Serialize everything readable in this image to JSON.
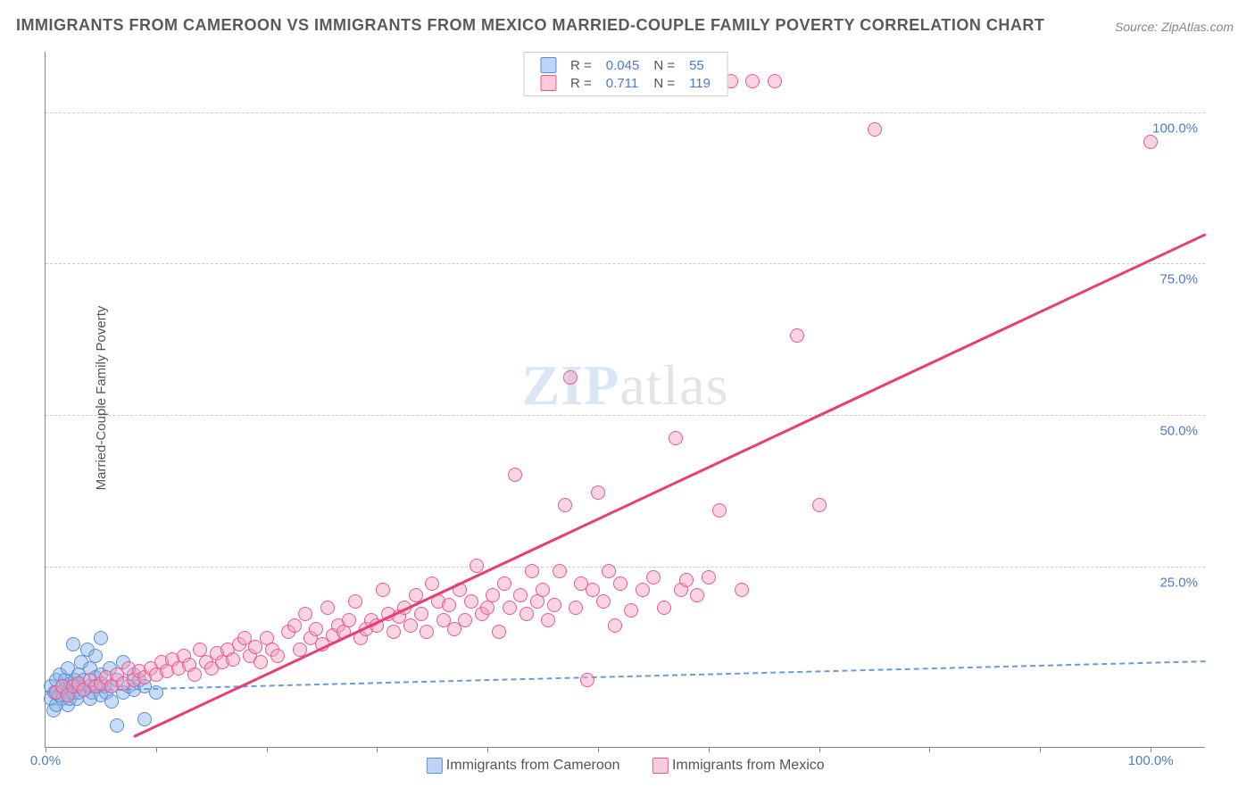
{
  "title": "IMMIGRANTS FROM CAMEROON VS IMMIGRANTS FROM MEXICO MARRIED-COUPLE FAMILY POVERTY CORRELATION CHART",
  "source": "Source: ZipAtlas.com",
  "ylabel": "Married-Couple Family Poverty",
  "watermark_a": "ZIP",
  "watermark_b": "atlas",
  "chart": {
    "type": "scatter",
    "xlim": [
      0,
      105
    ],
    "ylim": [
      -5,
      110
    ],
    "x_ticks": [
      0,
      10,
      20,
      30,
      40,
      50,
      60,
      70,
      80,
      90,
      100
    ],
    "x_tick_labels": {
      "0": "0.0%",
      "100": "100.0%"
    },
    "y_ticks": [
      25,
      50,
      75,
      100
    ],
    "y_tick_labels": {
      "25": "25.0%",
      "50": "50.0%",
      "75": "75.0%",
      "100": "100.0%"
    },
    "grid_color": "#cccccc",
    "background_color": "#ffffff",
    "axis_color": "#888888",
    "series": [
      {
        "name": "Immigrants from Cameroon",
        "key": "cameroon",
        "color_fill": "rgba(135,178,232,0.45)",
        "color_stroke": "#5a8fd6",
        "R": "0.045",
        "N": "55",
        "trend": {
          "x1": 0,
          "y1": 4.5,
          "x2": 105,
          "y2": 9.5
        },
        "points": [
          [
            0.5,
            3
          ],
          [
            0.5,
            5
          ],
          [
            0.7,
            1
          ],
          [
            0.8,
            4
          ],
          [
            1,
            6
          ],
          [
            1,
            2
          ],
          [
            1,
            4
          ],
          [
            1.2,
            3.5
          ],
          [
            1.3,
            7
          ],
          [
            1.5,
            5
          ],
          [
            1.5,
            3
          ],
          [
            1.7,
            4.5
          ],
          [
            1.8,
            6
          ],
          [
            2,
            4
          ],
          [
            2,
            8
          ],
          [
            2,
            2
          ],
          [
            2.2,
            3
          ],
          [
            2.3,
            5.5
          ],
          [
            2.5,
            4
          ],
          [
            2.5,
            12
          ],
          [
            2.7,
            6
          ],
          [
            2.8,
            3
          ],
          [
            3,
            5
          ],
          [
            3,
            7
          ],
          [
            3,
            4
          ],
          [
            3.2,
            9
          ],
          [
            3.5,
            4.5
          ],
          [
            3.5,
            6
          ],
          [
            3.8,
            11
          ],
          [
            4,
            5
          ],
          [
            4,
            3
          ],
          [
            4,
            8
          ],
          [
            4.2,
            4
          ],
          [
            4.5,
            6.5
          ],
          [
            4.5,
            10
          ],
          [
            4.7,
            5
          ],
          [
            5,
            3.5
          ],
          [
            5,
            13
          ],
          [
            5,
            7
          ],
          [
            5.3,
            5
          ],
          [
            5.5,
            4
          ],
          [
            5.8,
            8
          ],
          [
            6,
            5
          ],
          [
            6,
            2.5
          ],
          [
            6.5,
            -1.5
          ],
          [
            6.5,
            6
          ],
          [
            7,
            4
          ],
          [
            7,
            9
          ],
          [
            7.5,
            5
          ],
          [
            8,
            4.5
          ],
          [
            8,
            7
          ],
          [
            8.5,
            6
          ],
          [
            9,
            -0.5
          ],
          [
            9,
            5
          ],
          [
            10,
            4
          ]
        ]
      },
      {
        "name": "Immigrants from Mexico",
        "key": "mexico",
        "color_fill": "rgba(244,160,190,0.45)",
        "color_stroke": "#ea5b8a",
        "R": "0.711",
        "N": "119",
        "trend": {
          "x1": 8,
          "y1": -3,
          "x2": 105,
          "y2": 80
        },
        "points": [
          [
            1,
            4
          ],
          [
            1.5,
            5
          ],
          [
            2,
            3.5
          ],
          [
            2.5,
            5
          ],
          [
            3,
            5.5
          ],
          [
            3.5,
            4.5
          ],
          [
            4,
            6
          ],
          [
            4.5,
            5
          ],
          [
            5,
            5.5
          ],
          [
            5.5,
            6.5
          ],
          [
            6,
            5
          ],
          [
            6.5,
            7
          ],
          [
            7,
            5.5
          ],
          [
            7.5,
            8
          ],
          [
            8,
            6
          ],
          [
            8.5,
            7.5
          ],
          [
            9,
            6.5
          ],
          [
            9.5,
            8
          ],
          [
            10,
            7
          ],
          [
            10.5,
            9
          ],
          [
            11,
            7.5
          ],
          [
            11.5,
            9.5
          ],
          [
            12,
            8
          ],
          [
            12.5,
            10
          ],
          [
            13,
            8.5
          ],
          [
            13.5,
            7
          ],
          [
            14,
            11
          ],
          [
            14.5,
            9
          ],
          [
            15,
            8
          ],
          [
            15.5,
            10.5
          ],
          [
            16,
            9
          ],
          [
            16.5,
            11
          ],
          [
            17,
            9.5
          ],
          [
            17.5,
            12
          ],
          [
            18,
            13
          ],
          [
            18.5,
            10
          ],
          [
            19,
            11.5
          ],
          [
            19.5,
            9
          ],
          [
            20,
            13
          ],
          [
            20.5,
            11
          ],
          [
            21,
            10
          ],
          [
            22,
            14
          ],
          [
            22.5,
            15
          ],
          [
            23,
            11
          ],
          [
            23.5,
            17
          ],
          [
            24,
            13
          ],
          [
            24.5,
            14.5
          ],
          [
            25,
            12
          ],
          [
            25.5,
            18
          ],
          [
            26,
            13.5
          ],
          [
            26.5,
            15
          ],
          [
            27,
            14
          ],
          [
            27.5,
            16
          ],
          [
            28,
            19
          ],
          [
            28.5,
            13
          ],
          [
            29,
            14.5
          ],
          [
            29.5,
            16
          ],
          [
            30,
            15
          ],
          [
            30.5,
            21
          ],
          [
            31,
            17
          ],
          [
            31.5,
            14
          ],
          [
            32,
            16.5
          ],
          [
            32.5,
            18
          ],
          [
            33,
            15
          ],
          [
            33.5,
            20
          ],
          [
            34,
            17
          ],
          [
            34.5,
            14
          ],
          [
            35,
            22
          ],
          [
            35.5,
            19
          ],
          [
            36,
            16
          ],
          [
            36.5,
            18.5
          ],
          [
            37,
            14.5
          ],
          [
            37.5,
            21
          ],
          [
            38,
            16
          ],
          [
            38.5,
            19
          ],
          [
            39,
            25
          ],
          [
            39.5,
            17
          ],
          [
            40,
            18
          ],
          [
            40.5,
            20
          ],
          [
            41,
            14
          ],
          [
            41.5,
            22
          ],
          [
            42,
            18
          ],
          [
            42.5,
            40
          ],
          [
            43,
            20
          ],
          [
            43.5,
            17
          ],
          [
            44,
            24
          ],
          [
            44.5,
            19
          ],
          [
            45,
            21
          ],
          [
            45.5,
            16
          ],
          [
            46,
            18.5
          ],
          [
            46.5,
            24
          ],
          [
            47,
            35
          ],
          [
            47.5,
            56
          ],
          [
            48,
            18
          ],
          [
            48.5,
            22
          ],
          [
            49,
            6
          ],
          [
            49.5,
            21
          ],
          [
            50,
            37
          ],
          [
            50.5,
            19
          ],
          [
            51,
            24
          ],
          [
            51.5,
            15
          ],
          [
            52,
            22
          ],
          [
            53,
            17.5
          ],
          [
            54,
            21
          ],
          [
            55,
            23
          ],
          [
            56,
            18
          ],
          [
            57,
            46
          ],
          [
            57.5,
            21
          ],
          [
            58,
            22.5
          ],
          [
            59,
            20
          ],
          [
            60,
            23
          ],
          [
            61,
            34
          ],
          [
            62,
            105
          ],
          [
            63,
            21
          ],
          [
            64,
            105
          ],
          [
            66,
            105
          ],
          [
            68,
            63
          ],
          [
            70,
            35
          ],
          [
            75,
            97
          ],
          [
            100,
            95
          ]
        ]
      }
    ]
  },
  "legend_top_labels": {
    "R": "R =",
    "N": "N ="
  },
  "legend_bottom": [
    {
      "swatch": "sw-blue",
      "label": "Immigrants from Cameroon"
    },
    {
      "swatch": "sw-pink",
      "label": "Immigrants from Mexico"
    }
  ]
}
